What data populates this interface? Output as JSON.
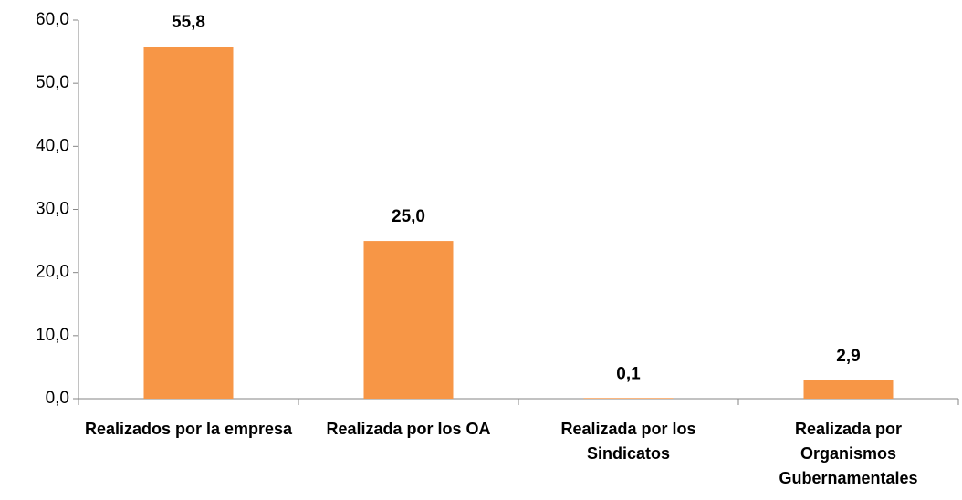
{
  "chart_data": {
    "type": "bar",
    "categories": [
      "Realizados por la empresa",
      "Realizada por los OA",
      "Realizada por los Sindicatos",
      "Realizada por Organismos Gubernamentales"
    ],
    "values": [
      55.8,
      25.0,
      0.1,
      2.9
    ],
    "value_labels": [
      "55,8",
      "25,0",
      "0,1",
      "2,9"
    ],
    "color": "#f79646",
    "ylim": [
      0,
      60
    ],
    "yticks": [
      {
        "value": 0,
        "label": "0,0"
      },
      {
        "value": 10,
        "label": "10,0"
      },
      {
        "value": 20,
        "label": "20,0"
      },
      {
        "value": 30,
        "label": "30,0"
      },
      {
        "value": 40,
        "label": "40,0"
      },
      {
        "value": 50,
        "label": "50,0"
      },
      {
        "value": 60,
        "label": "60,0"
      }
    ],
    "grid": false
  }
}
